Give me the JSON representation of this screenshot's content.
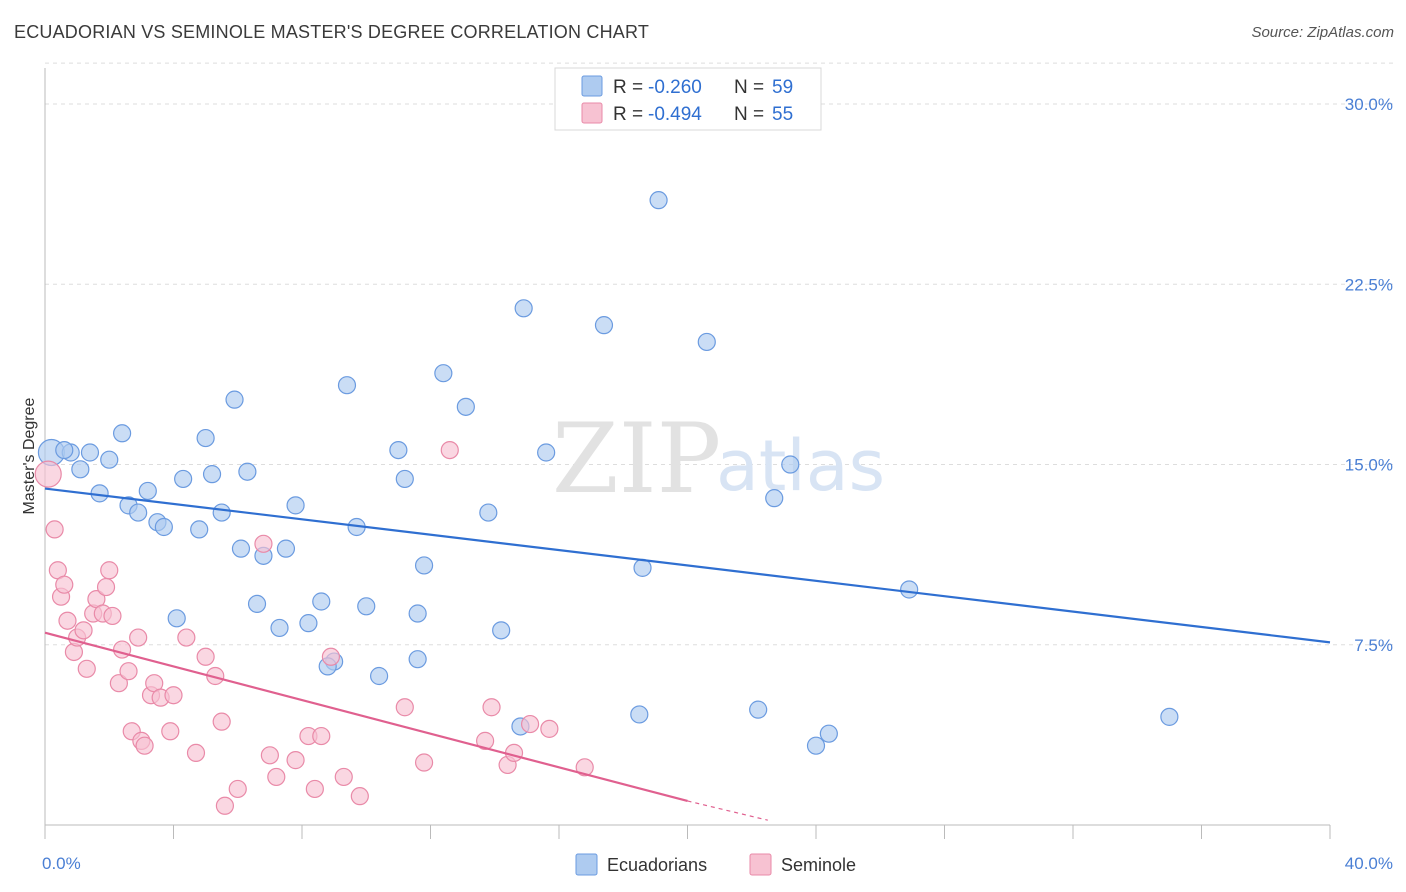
{
  "title": "ECUADORIAN VS SEMINOLE MASTER'S DEGREE CORRELATION CHART",
  "source": "Source: ZipAtlas.com",
  "watermark": {
    "zip": "ZIP",
    "atlas": "atlas"
  },
  "colors": {
    "blue_fill": "#aecbf0",
    "blue_stroke": "#6b9be0",
    "blue_line": "#2f6fd1",
    "pink_fill": "#f7c2d2",
    "pink_stroke": "#e98aa8",
    "pink_line": "#e0608f",
    "grid": "#dddddd",
    "tick_text": "#4a7fd4"
  },
  "legend": {
    "rows": [
      {
        "r_label": "R =",
        "r_value": "-0.260",
        "n_label": "N =",
        "n_value": "59"
      },
      {
        "r_label": "R =",
        "r_value": "-0.494",
        "n_label": "N =",
        "n_value": "55"
      }
    ]
  },
  "bottom_legend": [
    "Ecuadorians",
    "Seminole"
  ],
  "chart_data": {
    "type": "scatter",
    "title": "ECUADORIAN VS SEMINOLE MASTER'S DEGREE CORRELATION CHART",
    "xlabel": "",
    "ylabel": "Master's Degree",
    "xlim": [
      0,
      40
    ],
    "ylim": [
      0,
      31
    ],
    "x_tick_labels": [
      "0.0%",
      "40.0%"
    ],
    "y_ticks": [
      7.5,
      15.0,
      22.5,
      30.0
    ],
    "y_tick_labels": [
      "7.5%",
      "15.0%",
      "22.5%",
      "30.0%"
    ],
    "grid": true,
    "legend_position": "top-center",
    "series": [
      {
        "name": "Ecuadorians",
        "r": -0.26,
        "n": 59,
        "trend": {
          "x": [
            0,
            40
          ],
          "y": [
            14.0,
            7.6
          ]
        },
        "points": [
          [
            0.2,
            15.5
          ],
          [
            0.8,
            15.5
          ],
          [
            1.4,
            15.5
          ],
          [
            1.1,
            14.8
          ],
          [
            2.0,
            15.2
          ],
          [
            2.4,
            16.3
          ],
          [
            1.7,
            13.8
          ],
          [
            2.6,
            13.3
          ],
          [
            2.9,
            13.0
          ],
          [
            3.2,
            13.9
          ],
          [
            3.5,
            12.6
          ],
          [
            3.7,
            12.4
          ],
          [
            4.3,
            14.4
          ],
          [
            4.8,
            12.3
          ],
          [
            5.0,
            16.1
          ],
          [
            5.2,
            14.6
          ],
          [
            5.5,
            13.0
          ],
          [
            5.9,
            17.7
          ],
          [
            6.3,
            14.7
          ],
          [
            6.1,
            11.5
          ],
          [
            6.8,
            11.2
          ],
          [
            7.5,
            11.5
          ],
          [
            7.8,
            13.3
          ],
          [
            6.6,
            9.2
          ],
          [
            7.3,
            8.2
          ],
          [
            8.2,
            8.4
          ],
          [
            8.6,
            9.3
          ],
          [
            9.4,
            18.3
          ],
          [
            9.7,
            12.4
          ],
          [
            10.0,
            9.1
          ],
          [
            10.4,
            6.2
          ],
          [
            11.0,
            15.6
          ],
          [
            11.2,
            14.4
          ],
          [
            11.8,
            10.8
          ],
          [
            11.6,
            8.8
          ],
          [
            12.4,
            18.8
          ],
          [
            13.1,
            17.4
          ],
          [
            13.8,
            13.0
          ],
          [
            14.2,
            8.1
          ],
          [
            14.9,
            21.5
          ],
          [
            15.6,
            15.5
          ],
          [
            17.4,
            20.8
          ],
          [
            18.6,
            10.7
          ],
          [
            19.1,
            26.0
          ],
          [
            18.5,
            4.6
          ],
          [
            20.6,
            20.1
          ],
          [
            22.7,
            13.6
          ],
          [
            22.2,
            4.8
          ],
          [
            23.2,
            15.0
          ],
          [
            24.0,
            3.3
          ],
          [
            24.4,
            3.8
          ],
          [
            26.9,
            9.8
          ],
          [
            35.0,
            4.5
          ],
          [
            4.1,
            8.6
          ],
          [
            9.0,
            6.8
          ],
          [
            8.8,
            6.6
          ],
          [
            11.6,
            6.9
          ],
          [
            14.8,
            4.1
          ],
          [
            0.6,
            15.6
          ]
        ]
      },
      {
        "name": "Seminole",
        "r": -0.494,
        "n": 55,
        "trend": {
          "x": [
            0,
            20.0
          ],
          "y": [
            8.0,
            1.0
          ]
        },
        "trend_extension": {
          "x": [
            20.0,
            22.5
          ],
          "y": [
            1.0,
            0.2
          ]
        },
        "points": [
          [
            0.1,
            14.6
          ],
          [
            0.3,
            12.3
          ],
          [
            0.4,
            10.6
          ],
          [
            0.5,
            9.5
          ],
          [
            0.6,
            10.0
          ],
          [
            0.7,
            8.5
          ],
          [
            0.9,
            7.2
          ],
          [
            1.0,
            7.8
          ],
          [
            1.2,
            8.1
          ],
          [
            1.3,
            6.5
          ],
          [
            1.5,
            8.8
          ],
          [
            1.6,
            9.4
          ],
          [
            1.8,
            8.8
          ],
          [
            1.9,
            9.9
          ],
          [
            2.0,
            10.6
          ],
          [
            2.1,
            8.7
          ],
          [
            2.3,
            5.9
          ],
          [
            2.4,
            7.3
          ],
          [
            2.6,
            6.4
          ],
          [
            2.7,
            3.9
          ],
          [
            2.9,
            7.8
          ],
          [
            3.0,
            3.5
          ],
          [
            3.1,
            3.3
          ],
          [
            3.3,
            5.4
          ],
          [
            3.4,
            5.9
          ],
          [
            3.6,
            5.3
          ],
          [
            3.9,
            3.9
          ],
          [
            4.0,
            5.4
          ],
          [
            4.4,
            7.8
          ],
          [
            4.7,
            3.0
          ],
          [
            5.0,
            7.0
          ],
          [
            5.3,
            6.2
          ],
          [
            5.5,
            4.3
          ],
          [
            5.6,
            0.8
          ],
          [
            6.0,
            1.5
          ],
          [
            6.8,
            11.7
          ],
          [
            7.0,
            2.9
          ],
          [
            7.2,
            2.0
          ],
          [
            7.8,
            2.7
          ],
          [
            8.2,
            3.7
          ],
          [
            8.4,
            1.5
          ],
          [
            8.6,
            3.7
          ],
          [
            8.9,
            7.0
          ],
          [
            9.3,
            2.0
          ],
          [
            9.8,
            1.2
          ],
          [
            11.2,
            4.9
          ],
          [
            11.8,
            2.6
          ],
          [
            12.6,
            15.6
          ],
          [
            13.7,
            3.5
          ],
          [
            13.9,
            4.9
          ],
          [
            14.4,
            2.5
          ],
          [
            14.6,
            3.0
          ],
          [
            15.1,
            4.2
          ],
          [
            15.7,
            4.0
          ],
          [
            16.8,
            2.4
          ]
        ]
      }
    ]
  }
}
